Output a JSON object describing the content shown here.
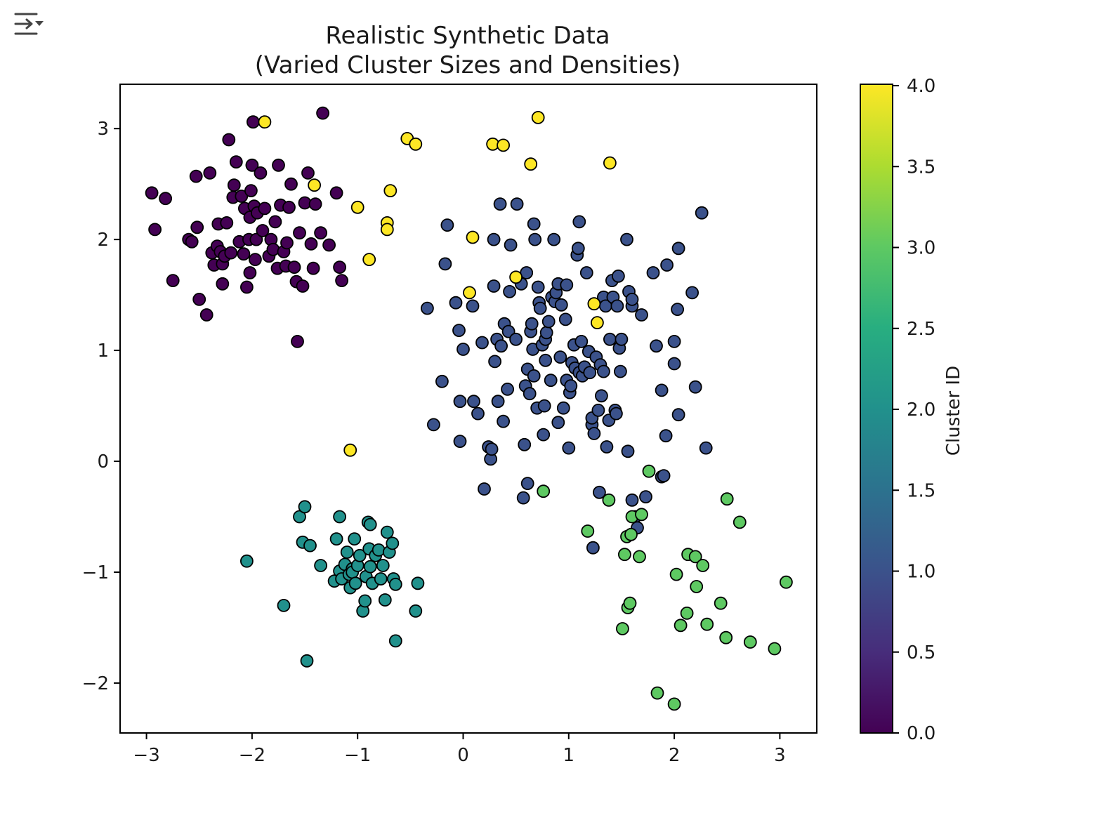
{
  "toolbar": {
    "icon": "output-collapse-icon"
  },
  "chart_data": {
    "type": "scatter",
    "title": "Realistic Synthetic Data",
    "subtitle": "(Varied Cluster Sizes and Densities)",
    "xlim": [
      -3.25,
      3.35
    ],
    "ylim": [
      -2.45,
      3.4
    ],
    "x_ticks": [
      -3,
      -2,
      -1,
      0,
      1,
      2,
      3
    ],
    "y_ticks": [
      -2,
      -1,
      0,
      1,
      2,
      3
    ],
    "x_tick_labels": [
      "−3",
      "−2",
      "−1",
      "0",
      "1",
      "2",
      "3"
    ],
    "y_tick_labels": [
      "−2",
      "−1",
      "0",
      "1",
      "2",
      "3"
    ],
    "grid": false,
    "colormap": "viridis",
    "colorbar": {
      "label": "Cluster ID",
      "range": [
        0.0,
        4.0
      ],
      "ticks": [
        0.0,
        0.5,
        1.0,
        1.5,
        2.0,
        2.5,
        3.0,
        3.5,
        4.0
      ],
      "tick_labels": [
        "0.0",
        "0.5",
        "1.0",
        "1.5",
        "2.0",
        "2.5",
        "3.0",
        "3.5",
        "4.0"
      ]
    },
    "series": [
      {
        "cluster": 0,
        "color": "#440154",
        "points": [
          [
            -2.95,
            2.42
          ],
          [
            -2.92,
            2.09
          ],
          [
            -2.82,
            2.37
          ],
          [
            -2.75,
            1.63
          ],
          [
            -2.6,
            2.0
          ],
          [
            -2.57,
            1.98
          ],
          [
            -2.53,
            2.57
          ],
          [
            -2.52,
            2.11
          ],
          [
            -2.5,
            1.46
          ],
          [
            -2.43,
            1.32
          ],
          [
            -2.4,
            2.6
          ],
          [
            -2.38,
            1.88
          ],
          [
            -2.36,
            1.77
          ],
          [
            -2.33,
            1.94
          ],
          [
            -2.32,
            2.14
          ],
          [
            -2.3,
            1.89
          ],
          [
            -2.28,
            1.78
          ],
          [
            -2.28,
            1.6
          ],
          [
            -2.26,
            1.85
          ],
          [
            -2.24,
            2.15
          ],
          [
            -2.22,
            2.9
          ],
          [
            -2.2,
            1.88
          ],
          [
            -2.18,
            2.38
          ],
          [
            -2.17,
            2.49
          ],
          [
            -2.15,
            2.7
          ],
          [
            -2.12,
            1.98
          ],
          [
            -2.1,
            2.39
          ],
          [
            -2.08,
            1.87
          ],
          [
            -2.07,
            2.28
          ],
          [
            -2.05,
            1.57
          ],
          [
            -2.03,
            2.0
          ],
          [
            -2.02,
            1.7
          ],
          [
            -2.02,
            2.2
          ],
          [
            -2.01,
            2.44
          ],
          [
            -2.0,
            2.67
          ],
          [
            -1.99,
            3.06
          ],
          [
            -1.98,
            2.3
          ],
          [
            -1.97,
            1.82
          ],
          [
            -1.96,
            2.0
          ],
          [
            -1.95,
            2.24
          ],
          [
            -1.92,
            2.6
          ],
          [
            -1.9,
            2.08
          ],
          [
            -1.88,
            2.28
          ],
          [
            -1.84,
            1.85
          ],
          [
            -1.82,
            2.0
          ],
          [
            -1.8,
            1.91
          ],
          [
            -1.78,
            2.16
          ],
          [
            -1.76,
            1.74
          ],
          [
            -1.75,
            2.67
          ],
          [
            -1.73,
            2.31
          ],
          [
            -1.7,
            1.89
          ],
          [
            -1.68,
            1.76
          ],
          [
            -1.67,
            1.97
          ],
          [
            -1.65,
            2.29
          ],
          [
            -1.63,
            2.5
          ],
          [
            -1.6,
            1.75
          ],
          [
            -1.58,
            1.62
          ],
          [
            -1.57,
            1.08
          ],
          [
            -1.55,
            2.06
          ],
          [
            -1.52,
            1.58
          ],
          [
            -1.5,
            2.33
          ],
          [
            -1.47,
            2.6
          ],
          [
            -1.44,
            1.96
          ],
          [
            -1.42,
            1.74
          ],
          [
            -1.4,
            2.32
          ],
          [
            -1.35,
            2.06
          ],
          [
            -1.33,
            3.14
          ],
          [
            -1.27,
            1.95
          ],
          [
            -1.2,
            2.42
          ],
          [
            -1.17,
            1.75
          ],
          [
            -1.15,
            1.63
          ]
        ]
      },
      {
        "cluster": 1,
        "color": "#3b528b",
        "points": [
          [
            -0.34,
            1.38
          ],
          [
            -0.28,
            0.33
          ],
          [
            -0.2,
            0.72
          ],
          [
            -0.17,
            1.78
          ],
          [
            -0.15,
            2.13
          ],
          [
            -0.07,
            1.43
          ],
          [
            -0.04,
            1.18
          ],
          [
            -0.03,
            0.54
          ],
          [
            -0.03,
            0.18
          ],
          [
            0.0,
            1.01
          ],
          [
            0.09,
            1.4
          ],
          [
            0.1,
            0.54
          ],
          [
            0.14,
            0.43
          ],
          [
            0.18,
            1.07
          ],
          [
            0.2,
            -0.25
          ],
          [
            0.24,
            0.13
          ],
          [
            0.26,
            0.02
          ],
          [
            0.27,
            0.11
          ],
          [
            0.29,
            1.58
          ],
          [
            0.29,
            2.0
          ],
          [
            0.3,
            0.9
          ],
          [
            0.32,
            1.1
          ],
          [
            0.33,
            0.54
          ],
          [
            0.35,
            2.32
          ],
          [
            0.36,
            1.04
          ],
          [
            0.38,
            0.36
          ],
          [
            0.39,
            1.24
          ],
          [
            0.42,
            0.65
          ],
          [
            0.43,
            1.17
          ],
          [
            0.44,
            1.53
          ],
          [
            0.45,
            1.95
          ],
          [
            0.5,
            1.1
          ],
          [
            0.51,
            2.32
          ],
          [
            0.55,
            1.6
          ],
          [
            0.57,
            -0.33
          ],
          [
            0.58,
            0.15
          ],
          [
            0.59,
            0.68
          ],
          [
            0.6,
            1.7
          ],
          [
            0.61,
            -0.2
          ],
          [
            0.61,
            0.83
          ],
          [
            0.63,
            0.61
          ],
          [
            0.64,
            1.17
          ],
          [
            0.65,
            1.24
          ],
          [
            0.66,
            1.01
          ],
          [
            0.67,
            0.77
          ],
          [
            0.67,
            2.14
          ],
          [
            0.68,
            2.0
          ],
          [
            0.7,
            0.48
          ],
          [
            0.71,
            1.57
          ],
          [
            0.72,
            1.43
          ],
          [
            0.73,
            1.38
          ],
          [
            0.75,
            1.05
          ],
          [
            0.76,
            0.24
          ],
          [
            0.77,
            0.5
          ],
          [
            0.78,
            1.1
          ],
          [
            0.78,
            0.91
          ],
          [
            0.79,
            1.16
          ],
          [
            0.81,
            1.26
          ],
          [
            0.83,
            0.73
          ],
          [
            0.84,
            1.48
          ],
          [
            0.86,
            2.0
          ],
          [
            0.87,
            1.44
          ],
          [
            0.88,
            1.52
          ],
          [
            0.9,
            0.35
          ],
          [
            0.9,
            1.6
          ],
          [
            0.92,
            0.94
          ],
          [
            0.93,
            1.41
          ],
          [
            0.95,
            0.48
          ],
          [
            0.97,
            1.28
          ],
          [
            0.98,
            0.73
          ],
          [
            0.98,
            1.59
          ],
          [
            1.0,
            0.12
          ],
          [
            1.01,
            0.62
          ],
          [
            1.02,
            0.68
          ],
          [
            1.03,
            0.89
          ],
          [
            1.05,
            1.05
          ],
          [
            1.06,
            0.84
          ],
          [
            1.08,
            1.86
          ],
          [
            1.09,
            1.92
          ],
          [
            1.1,
            0.8
          ],
          [
            1.1,
            2.16
          ],
          [
            1.12,
            1.08
          ],
          [
            1.13,
            0.77
          ],
          [
            1.15,
            0.85
          ],
          [
            1.17,
            1.7
          ],
          [
            1.19,
            0.99
          ],
          [
            1.2,
            0.8
          ],
          [
            1.22,
            0.33
          ],
          [
            1.22,
            0.39
          ],
          [
            1.23,
            -0.78
          ],
          [
            1.24,
            0.25
          ],
          [
            1.26,
            0.94
          ],
          [
            1.28,
            0.46
          ],
          [
            1.29,
            -0.28
          ],
          [
            1.3,
            0.87
          ],
          [
            1.31,
            0.59
          ],
          [
            1.33,
            1.48
          ],
          [
            1.33,
            0.81
          ],
          [
            1.35,
            1.4
          ],
          [
            1.36,
            0.13
          ],
          [
            1.38,
            0.37
          ],
          [
            1.39,
            1.1
          ],
          [
            1.41,
            1.63
          ],
          [
            1.42,
            1.48
          ],
          [
            1.44,
            0.46
          ],
          [
            1.45,
            0.43
          ],
          [
            1.46,
            1.4
          ],
          [
            1.47,
            1.67
          ],
          [
            1.48,
            1.02
          ],
          [
            1.49,
            0.81
          ],
          [
            1.5,
            1.1
          ],
          [
            1.55,
            2.0
          ],
          [
            1.56,
            0.09
          ],
          [
            1.57,
            1.53
          ],
          [
            1.6,
            1.4
          ],
          [
            1.6,
            1.46
          ],
          [
            1.6,
            -0.35
          ],
          [
            1.63,
            -0.5
          ],
          [
            1.65,
            -0.6
          ],
          [
            1.69,
            1.32
          ],
          [
            1.73,
            -0.32
          ],
          [
            1.8,
            1.7
          ],
          [
            1.83,
            1.04
          ],
          [
            1.88,
            0.64
          ],
          [
            1.88,
            -0.14
          ],
          [
            1.9,
            -0.13
          ],
          [
            1.92,
            0.23
          ],
          [
            1.93,
            1.77
          ],
          [
            2.0,
            0.88
          ],
          [
            2.0,
            1.08
          ],
          [
            2.03,
            1.37
          ],
          [
            2.04,
            0.42
          ],
          [
            2.04,
            1.92
          ],
          [
            2.17,
            1.52
          ],
          [
            2.2,
            0.67
          ],
          [
            2.26,
            2.24
          ],
          [
            2.3,
            0.12
          ]
        ]
      },
      {
        "cluster": 2,
        "color": "#21918c",
        "points": [
          [
            -2.05,
            -0.9
          ],
          [
            -1.7,
            -1.3
          ],
          [
            -1.55,
            -0.5
          ],
          [
            -1.52,
            -0.73
          ],
          [
            -1.5,
            -0.41
          ],
          [
            -1.48,
            -1.8
          ],
          [
            -1.45,
            -0.76
          ],
          [
            -1.35,
            -0.94
          ],
          [
            -1.22,
            -1.08
          ],
          [
            -1.2,
            -0.7
          ],
          [
            -1.17,
            -0.99
          ],
          [
            -1.17,
            -0.5
          ],
          [
            -1.15,
            -1.06
          ],
          [
            -1.12,
            -0.93
          ],
          [
            -1.1,
            -0.82
          ],
          [
            -1.08,
            -1.02
          ],
          [
            -1.07,
            -1.14
          ],
          [
            -1.05,
            -0.97
          ],
          [
            -1.05,
            -1.0
          ],
          [
            -1.03,
            -0.7
          ],
          [
            -1.02,
            -1.1
          ],
          [
            -1.0,
            -0.94
          ],
          [
            -0.98,
            -0.85
          ],
          [
            -0.95,
            -1.35
          ],
          [
            -0.93,
            -1.26
          ],
          [
            -0.92,
            -1.04
          ],
          [
            -0.9,
            -0.55
          ],
          [
            -0.89,
            -0.79
          ],
          [
            -0.88,
            -0.57
          ],
          [
            -0.88,
            -0.95
          ],
          [
            -0.86,
            -1.1
          ],
          [
            -0.83,
            -0.85
          ],
          [
            -0.8,
            -0.8
          ],
          [
            -0.78,
            -1.06
          ],
          [
            -0.76,
            -0.94
          ],
          [
            -0.74,
            -1.25
          ],
          [
            -0.72,
            -0.64
          ],
          [
            -0.7,
            -0.82
          ],
          [
            -0.67,
            -0.74
          ],
          [
            -0.66,
            -1.06
          ],
          [
            -0.64,
            -1.11
          ],
          [
            -0.64,
            -1.62
          ],
          [
            -0.45,
            -1.35
          ],
          [
            -0.43,
            -1.1
          ]
        ]
      },
      {
        "cluster": 3,
        "color": "#5ec962",
        "points": [
          [
            0.76,
            -0.27
          ],
          [
            1.18,
            -0.63
          ],
          [
            1.38,
            -0.35
          ],
          [
            1.51,
            -1.51
          ],
          [
            1.53,
            -0.84
          ],
          [
            1.55,
            -0.68
          ],
          [
            1.56,
            -1.32
          ],
          [
            1.58,
            -1.28
          ],
          [
            1.59,
            -0.66
          ],
          [
            1.6,
            -0.5
          ],
          [
            1.67,
            -0.86
          ],
          [
            1.69,
            -0.48
          ],
          [
            1.76,
            -0.09
          ],
          [
            1.84,
            -2.09
          ],
          [
            2.0,
            -2.19
          ],
          [
            2.02,
            -1.02
          ],
          [
            2.06,
            -1.48
          ],
          [
            2.12,
            -1.37
          ],
          [
            2.13,
            -0.84
          ],
          [
            2.2,
            -0.86
          ],
          [
            2.21,
            -1.13
          ],
          [
            2.27,
            -0.94
          ],
          [
            2.31,
            -1.47
          ],
          [
            2.44,
            -1.28
          ],
          [
            2.49,
            -1.59
          ],
          [
            2.5,
            -0.34
          ],
          [
            2.62,
            -0.55
          ],
          [
            2.72,
            -1.63
          ],
          [
            2.95,
            -1.69
          ],
          [
            3.06,
            -1.09
          ]
        ]
      },
      {
        "cluster": 4,
        "color": "#fde725",
        "points": [
          [
            -1.88,
            3.06
          ],
          [
            -1.41,
            2.49
          ],
          [
            -1.07,
            0.1
          ],
          [
            -1.0,
            2.29
          ],
          [
            -0.89,
            1.82
          ],
          [
            -0.72,
            2.15
          ],
          [
            -0.72,
            2.09
          ],
          [
            -0.69,
            2.44
          ],
          [
            -0.53,
            2.91
          ],
          [
            -0.45,
            2.86
          ],
          [
            0.06,
            1.52
          ],
          [
            0.09,
            2.02
          ],
          [
            0.28,
            2.86
          ],
          [
            0.38,
            2.85
          ],
          [
            0.5,
            1.66
          ],
          [
            0.64,
            2.68
          ],
          [
            0.71,
            3.1
          ],
          [
            1.24,
            1.42
          ],
          [
            1.27,
            1.25
          ],
          [
            1.39,
            2.69
          ]
        ]
      }
    ]
  }
}
